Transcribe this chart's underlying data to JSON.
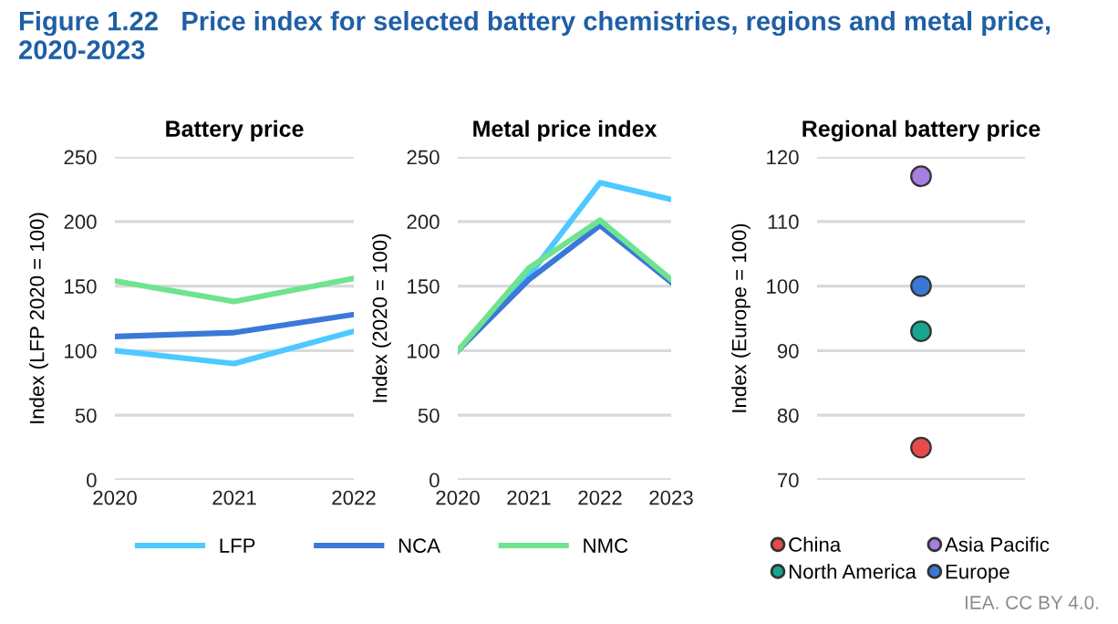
{
  "chart_data": [
    {
      "type": "other",
      "title": "Figure 1.22   Price index for selected battery chemistries, regions and metal price, 2020-2023"
    },
    {
      "type": "line",
      "title": "Battery price",
      "ylabel": "Index (LFP 2020 = 100)",
      "categories": [
        "2020",
        "2021",
        "2022"
      ],
      "series": [
        {
          "name": "LFP",
          "color": "#4dc9ff",
          "values": [
            100,
            90,
            115
          ]
        },
        {
          "name": "NCA",
          "color": "#3b78d8",
          "values": [
            111,
            114,
            128
          ]
        },
        {
          "name": "NMC",
          "color": "#6fe38f",
          "values": [
            154,
            138,
            156
          ]
        }
      ],
      "ylim": [
        0,
        250
      ],
      "yticks": [
        0,
        50,
        100,
        150,
        200,
        250
      ],
      "grid": "y",
      "legend": "bottom",
      "marker": "none"
    },
    {
      "type": "line",
      "title": "Metal price index",
      "ylabel": "Index (2020 = 100)",
      "categories": [
        "2020",
        "2021",
        "2022",
        "2023"
      ],
      "series": [
        {
          "color": "#4dc9ff",
          "values": [
            100,
            158,
            230,
            217
          ]
        },
        {
          "color": "#3b78d8",
          "values": [
            100,
            155,
            197,
            153
          ]
        },
        {
          "color": "#6fe38f",
          "values": [
            100,
            164,
            201,
            155
          ]
        }
      ],
      "ylim": [
        0,
        250
      ],
      "yticks": [
        0,
        50,
        100,
        150,
        200,
        250
      ],
      "grid": "y",
      "marker": "none"
    },
    {
      "type": "scatter",
      "title": "Regional battery price",
      "ylabel": "Index (Europe = 100)",
      "categories": [
        null
      ],
      "series": [
        {
          "name": "China",
          "color": "#e84a4a",
          "values": [
            75
          ]
        },
        {
          "name": "North America",
          "color": "#17a58f",
          "values": [
            93
          ]
        },
        {
          "name": "Asia Pacific",
          "color": "#a77fe0",
          "values": [
            117
          ]
        },
        {
          "name": "Europe",
          "color": "#3a78d4",
          "values": [
            100
          ]
        }
      ],
      "ylim": [
        70,
        120
      ],
      "yticks": [
        70,
        80,
        90,
        100,
        110,
        120
      ],
      "grid": "y",
      "legend": "bottom",
      "marker": "circle",
      "annotations": [
        "IEA. CC BY 4.0."
      ]
    }
  ]
}
